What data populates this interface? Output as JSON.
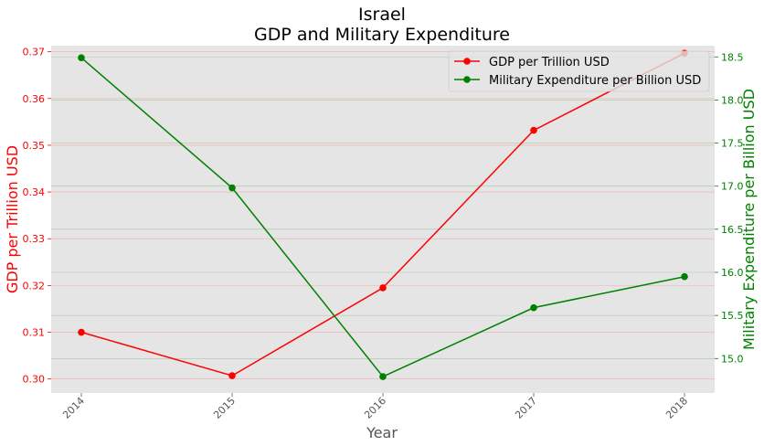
{
  "chart_data": {
    "type": "line",
    "title": "Israel",
    "subtitle": "GDP and Military Expenditure",
    "xlabel": "Year",
    "ylabel_left": "GDP per Trillion USD",
    "ylabel_right": "Military Expenditure per Billion USD",
    "categories": [
      "2014",
      "2015",
      "2016",
      "2017",
      "2018"
    ],
    "series": [
      {
        "name": "GDP per Trillion USD",
        "axis": "left",
        "color": "#ff0000",
        "values": [
          0.31,
          0.3007,
          0.3195,
          0.3532,
          0.3697
        ]
      },
      {
        "name": "Military Expenditure per Billion USD",
        "axis": "right",
        "color": "#008000",
        "values": [
          18.49,
          16.98,
          14.79,
          15.59,
          15.95
        ]
      }
    ],
    "ylim_left": [
      0.297,
      0.3713
    ],
    "ylim_right": [
      14.6,
      18.63
    ],
    "yticks_left": [
      "0.30",
      "0.31",
      "0.32",
      "0.33",
      "0.34",
      "0.35",
      "0.36",
      "0.37"
    ],
    "yticks_right": [
      "15.0",
      "15.5",
      "16.0",
      "16.5",
      "17.0",
      "17.5",
      "18.0",
      "18.5"
    ],
    "grid": true,
    "legend_position": "top-right",
    "plot_background": "#e5e5e5"
  }
}
